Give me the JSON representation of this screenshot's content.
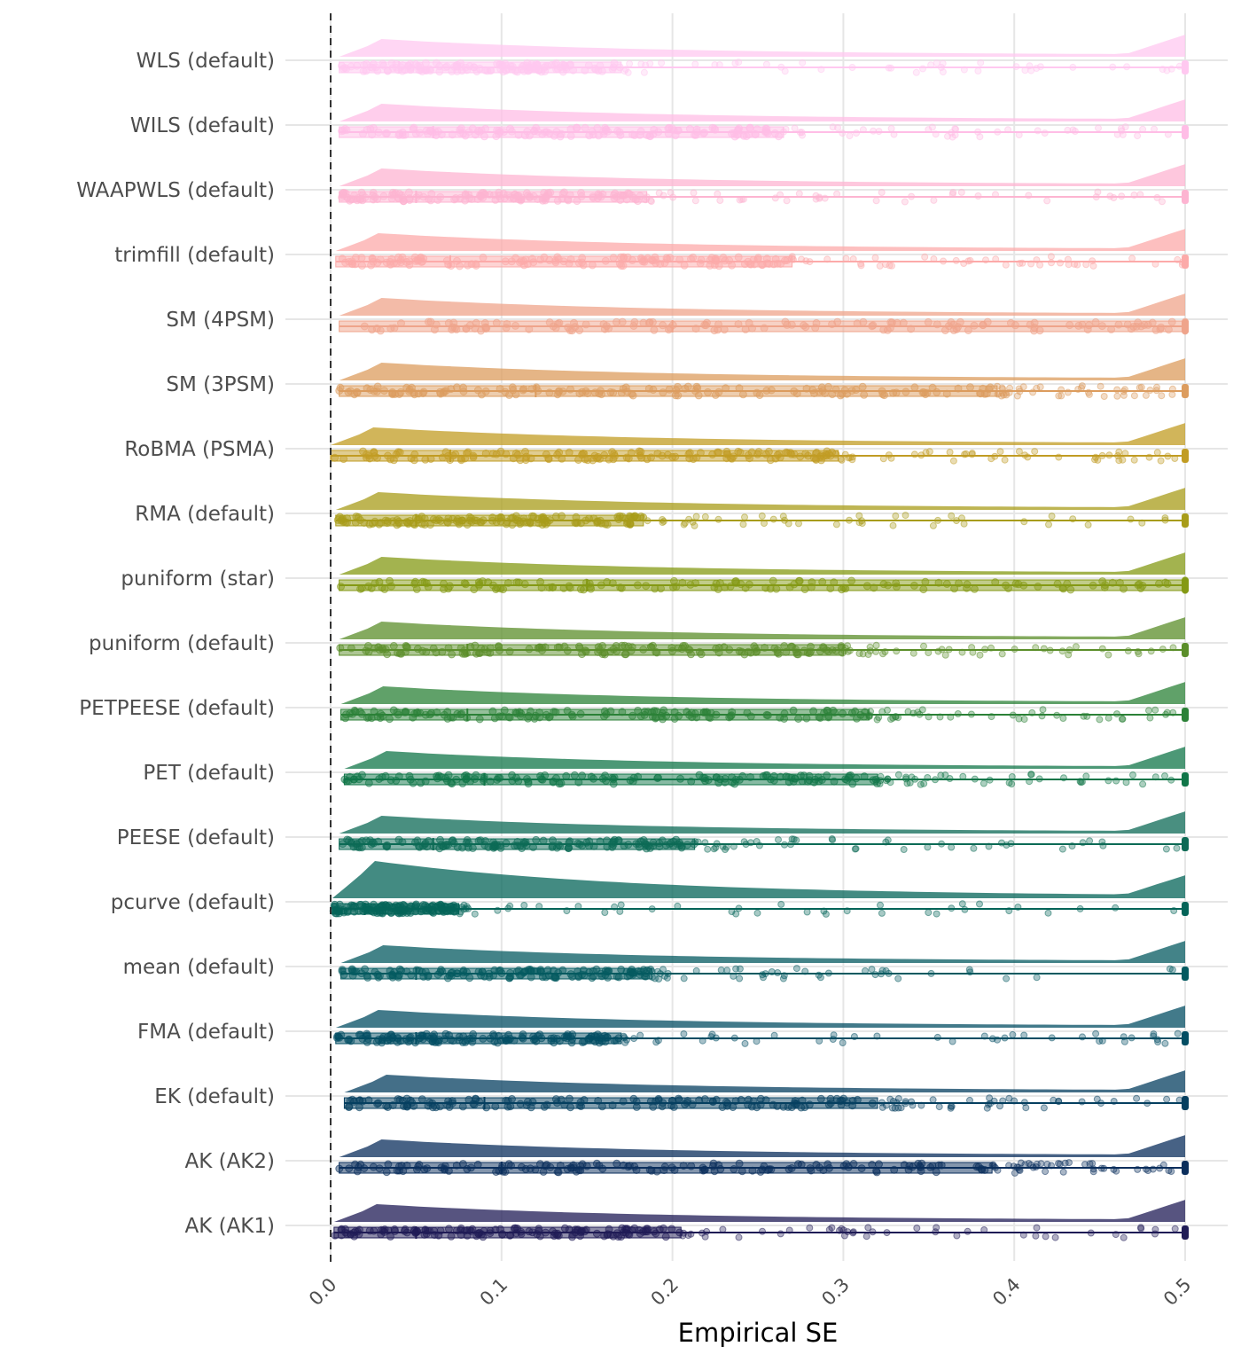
{
  "chart_data": {
    "type": "raincloud",
    "xlabel": "Empirical SE",
    "ylabel": "",
    "xlim": [
      0.0,
      0.5
    ],
    "x_ticks": [
      "0.0",
      "0.1",
      "0.2",
      "0.3",
      "0.4",
      "0.5"
    ],
    "reference_line_x": 0.0,
    "grid": true,
    "series": [
      {
        "name": "WLS (default)",
        "color": "#FFC8F0",
        "q1": 0.005,
        "q3": 0.17,
        "median": 0.04,
        "max": 0.5,
        "extra_max": 0.5
      },
      {
        "name": "WILS (default)",
        "color": "#FFBDE6",
        "q1": 0.005,
        "q3": 0.265,
        "median": 0.06,
        "max": 0.5,
        "extra_max": 0.5
      },
      {
        "name": "WAAPWLS (default)",
        "color": "#FDB4D1",
        "q1": 0.005,
        "q3": 0.185,
        "median": 0.05,
        "max": 0.5,
        "extra_max": 0.5
      },
      {
        "name": "trimfill (default)",
        "color": "#FCAAA9",
        "q1": 0.003,
        "q3": 0.27,
        "median": 0.07,
        "max": 0.5,
        "extra_max": 0.5
      },
      {
        "name": "SM (4PSM)",
        "color": "#EFA48B",
        "q1": 0.005,
        "q3": 0.5,
        "median": 0.2,
        "max": 0.5,
        "extra_max": 0.5
      },
      {
        "name": "SM (3PSM)",
        "color": "#DC9C5E",
        "q1": 0.005,
        "q3": 0.39,
        "median": 0.12,
        "max": 0.5,
        "extra_max": 0.5
      },
      {
        "name": "RoBMA (PSMA)",
        "color": "#C19C23",
        "q1": 0.0,
        "q3": 0.297,
        "median": 0.07,
        "max": 0.5,
        "extra_max": 0.5
      },
      {
        "name": "RMA (default)",
        "color": "#A89C19",
        "q1": 0.003,
        "q3": 0.183,
        "median": 0.05,
        "max": 0.5,
        "extra_max": 0.5
      },
      {
        "name": "puniform (star)",
        "color": "#849914",
        "q1": 0.005,
        "q3": 0.5,
        "median": 0.15,
        "max": 0.5,
        "extra_max": 0.5
      },
      {
        "name": "puniform (default)",
        "color": "#5B8E2A",
        "q1": 0.005,
        "q3": 0.3,
        "median": 0.08,
        "max": 0.5,
        "extra_max": 0.5
      },
      {
        "name": "PETPEESE (default)",
        "color": "#2B8137",
        "q1": 0.006,
        "q3": 0.315,
        "median": 0.08,
        "max": 0.5,
        "extra_max": 0.5
      },
      {
        "name": "PET (default)",
        "color": "#107548",
        "q1": 0.008,
        "q3": 0.32,
        "median": 0.09,
        "max": 0.5,
        "extra_max": 0.5
      },
      {
        "name": "PEESE (default)",
        "color": "#0C6A55",
        "q1": 0.005,
        "q3": 0.213,
        "median": 0.06,
        "max": 0.5,
        "extra_max": 0.5
      },
      {
        "name": "pcurve (default)",
        "color": "#046458",
        "q1": 0.001,
        "q3": 0.075,
        "median": 0.02,
        "max": 0.5,
        "extra_max": 0.5
      },
      {
        "name": "mean (default)",
        "color": "#045A60",
        "q1": 0.006,
        "q3": 0.188,
        "median": 0.05,
        "max": 0.5,
        "extra_max": 0.5
      },
      {
        "name": "FMA (default)",
        "color": "#034D63",
        "q1": 0.003,
        "q3": 0.17,
        "median": 0.05,
        "max": 0.5,
        "extra_max": 0.5
      },
      {
        "name": "EK (default)",
        "color": "#053F60",
        "q1": 0.008,
        "q3": 0.32,
        "median": 0.09,
        "max": 0.5,
        "extra_max": 0.5
      },
      {
        "name": "AK (AK2)",
        "color": "#0A2E5C",
        "q1": 0.005,
        "q3": 0.387,
        "median": 0.1,
        "max": 0.5,
        "extra_max": 0.5
      },
      {
        "name": "AK (AK1)",
        "color": "#1F1B56",
        "q1": 0.002,
        "q3": 0.205,
        "median": 0.05,
        "max": 0.5,
        "extra_max": 0.5
      }
    ]
  }
}
